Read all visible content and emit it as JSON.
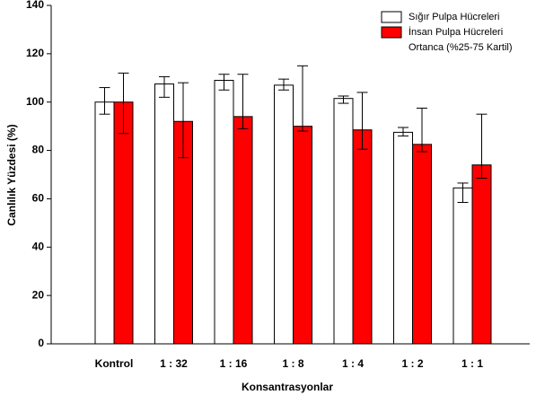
{
  "chart_data": {
    "type": "bar",
    "y_label": "Canlılık Yüzdesi (%)",
    "x_label": "Konsantrasyonlar",
    "categories": [
      "Kontrol",
      "1 : 32",
      "1 : 16",
      "1 : 8",
      "1 : 4",
      "1 : 2",
      "1 : 1"
    ],
    "series": [
      {
        "name": "Sığır Pulpa Hücreleri",
        "color": "#ffffff",
        "values": [
          100,
          107.5,
          109,
          107,
          101.5,
          87.5,
          64.5
        ],
        "low": [
          95,
          102,
          105,
          105,
          99.5,
          86,
          58.5
        ],
        "high": [
          106,
          110.5,
          111.5,
          109.5,
          102.5,
          89.5,
          66.5
        ]
      },
      {
        "name": "İnsan Pulpa Hücreleri",
        "color": "#ff0000",
        "values": [
          100,
          92,
          94,
          90,
          88.5,
          82.5,
          74
        ],
        "low": [
          87,
          77,
          89,
          88,
          80.5,
          79.5,
          68.5
        ],
        "high": [
          112,
          108,
          111.5,
          115,
          104,
          97.5,
          95
        ]
      }
    ],
    "legend_note": "Ortanca (%25-75 Kartil)",
    "ylim": [
      0,
      140
    ],
    "yticks": [
      0,
      20,
      40,
      60,
      80,
      100,
      120,
      140
    ]
  }
}
